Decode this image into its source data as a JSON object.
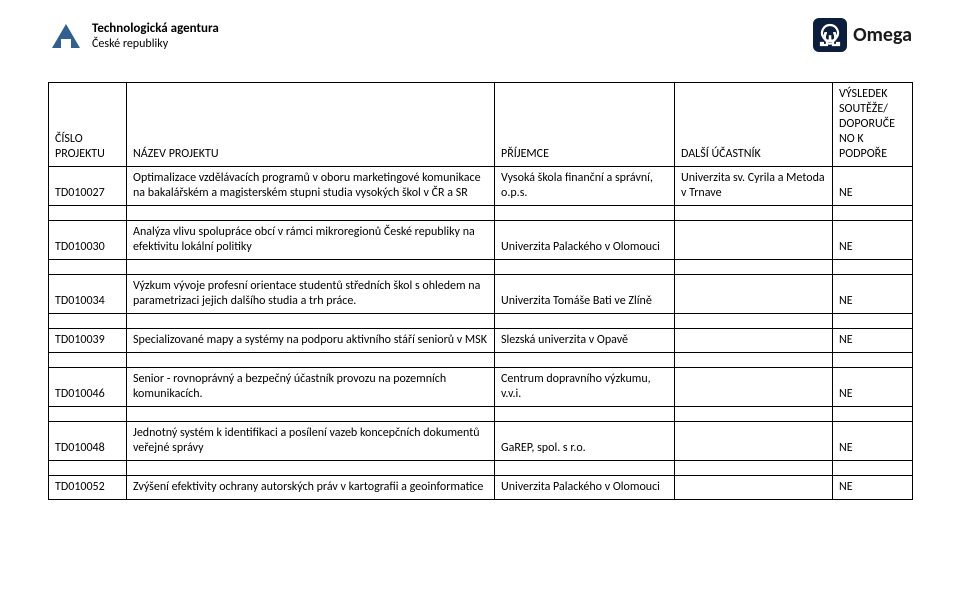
{
  "header": {
    "left_logo_title": "Technologická agentura",
    "left_logo_sub": "České republiky",
    "right_logo_text": "Omega"
  },
  "columns": {
    "id": "ČÍSLO PROJEKTU",
    "name": "NÁZEV PROJEKTU",
    "recipient": "PŘÍJEMCE",
    "participant": "DALŠÍ ÚČASTNÍK",
    "result": "VÝSLEDEK SOUTĚŽE/ DOPORUČE NO K PODPOŘE"
  },
  "rows": [
    {
      "id": "TD010027",
      "name": "Optimalizace vzdělávacích programů v oboru marketingové komunikace na bakalářském a magisterském stupni studia vysokých škol v ČR a SR",
      "recipient": "Vysoká škola finanční a správní, o.p.s.",
      "participant": "Univerzita sv. Cyrila a Metoda v Trnave",
      "result": "NE"
    },
    {
      "id": "TD010030",
      "name": "Analýza vlivu spolupráce obcí v rámci mikroregionů České republiky na efektivitu lokální politiky",
      "recipient": "Univerzita Palackého v Olomouci",
      "participant": "",
      "result": "NE"
    },
    {
      "id": "TD010034",
      "name": "Výzkum vývoje profesní orientace studentů středních škol s ohledem na parametrizaci jejich dalšího studia a trh práce.",
      "recipient": "Univerzita Tomáše Bati ve Zlíně",
      "participant": "",
      "result": "NE"
    },
    {
      "id": "TD010039",
      "name": "Specializované mapy a systémy na podporu aktivního stáří seniorů v MSK",
      "recipient": "Slezská univerzita v Opavě",
      "participant": "",
      "result": "NE"
    },
    {
      "id": "TD010046",
      "name": "Senior - rovnoprávný a bezpečný účastník provozu na pozemních komunikacích.",
      "recipient": "Centrum dopravního výzkumu, v.v.i.",
      "participant": "",
      "result": "NE"
    },
    {
      "id": "TD010048",
      "name": "Jednotný systém k identifikaci a posílení vazeb koncepčních dokumentů veřejné správy",
      "recipient": "GaREP, spol. s r.o.",
      "participant": "",
      "result": "NE"
    },
    {
      "id": "TD010052",
      "name": "Zvýšení efektivity ochrany autorských práv v kartografii a geoinformatice",
      "recipient": "Univerzita Palackého v Olomouci",
      "participant": "",
      "result": "NE"
    }
  ],
  "colors": {
    "omega_bg": "#0b1e3d",
    "omega_fg": "#ffffff",
    "logo": "#315f8f"
  }
}
